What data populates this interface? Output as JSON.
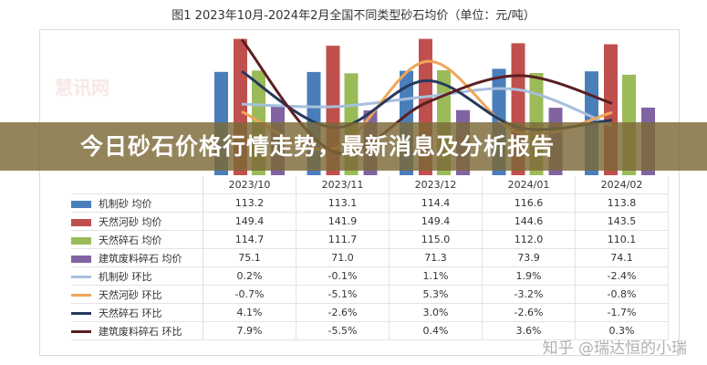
{
  "title": "图1 2023年10月-2024年2月全国不同类型砂石均价（单位：元/吨）",
  "banner": "今日砂石价格行情走势，最新消息及分析报告",
  "watermark": "知乎 @瑞达恒的小瑞",
  "watermark_left": "慧讯网",
  "chart_data": {
    "type": "bar",
    "categories": [
      "2023/10",
      "2023/11",
      "2023/12",
      "2024/01",
      "2024/02"
    ],
    "bar_series": [
      {
        "name": "机制砂 均价",
        "color": "#4a7ebb",
        "values": [
          113.2,
          113.1,
          114.4,
          116.6,
          113.8
        ],
        "labels": [
          "113.2",
          "113.1",
          "114.4",
          "116.6",
          "113.8"
        ]
      },
      {
        "name": "天然河砂 均价",
        "color": "#c0504d",
        "values": [
          149.4,
          141.9,
          149.4,
          144.6,
          143.5
        ],
        "labels": [
          "149.4",
          "141.9",
          "149.4",
          "144.6",
          "143.5"
        ]
      },
      {
        "name": "天然碎石 均价",
        "color": "#9bbb59",
        "values": [
          114.7,
          111.7,
          115.0,
          112.0,
          110.1
        ],
        "labels": [
          "114.7",
          "111.7",
          "115.0",
          "112.0",
          "110.1"
        ]
      },
      {
        "name": "建筑废料碎石 均价",
        "color": "#8064a2",
        "values": [
          75.1,
          71.0,
          71.3,
          73.9,
          74.1
        ],
        "labels": [
          "75.1",
          "71.0",
          "71.3",
          "73.9",
          "74.1"
        ]
      }
    ],
    "line_series": [
      {
        "name": "机制砂 环比",
        "color": "#a8bfdd",
        "values": [
          0.2,
          -0.1,
          1.1,
          1.9,
          -2.4
        ],
        "labels": [
          "0.2%",
          "-0.1%",
          "1.1%",
          "1.9%",
          "-2.4%"
        ]
      },
      {
        "name": "天然河砂 环比",
        "color": "#f0a55a",
        "values": [
          -0.7,
          -5.1,
          5.3,
          -3.2,
          -0.8
        ],
        "labels": [
          "-0.7%",
          "-5.1%",
          "5.3%",
          "-3.2%",
          "-0.8%"
        ]
      },
      {
        "name": "天然碎石 环比",
        "color": "#26395c",
        "values": [
          4.1,
          -2.6,
          3.0,
          -2.6,
          -1.7
        ],
        "labels": [
          "4.1%",
          "-2.6%",
          "3.0%",
          "-2.6%",
          "-1.7%"
        ]
      },
      {
        "name": "建筑废料碎石 环比",
        "color": "#5b1f22",
        "values": [
          7.9,
          -5.5,
          0.4,
          3.6,
          0.3
        ],
        "labels": [
          "7.9%",
          "-5.5%",
          "0.4%",
          "3.6%",
          "0.3%"
        ]
      }
    ],
    "y_unit": "元/吨",
    "grid": false
  }
}
